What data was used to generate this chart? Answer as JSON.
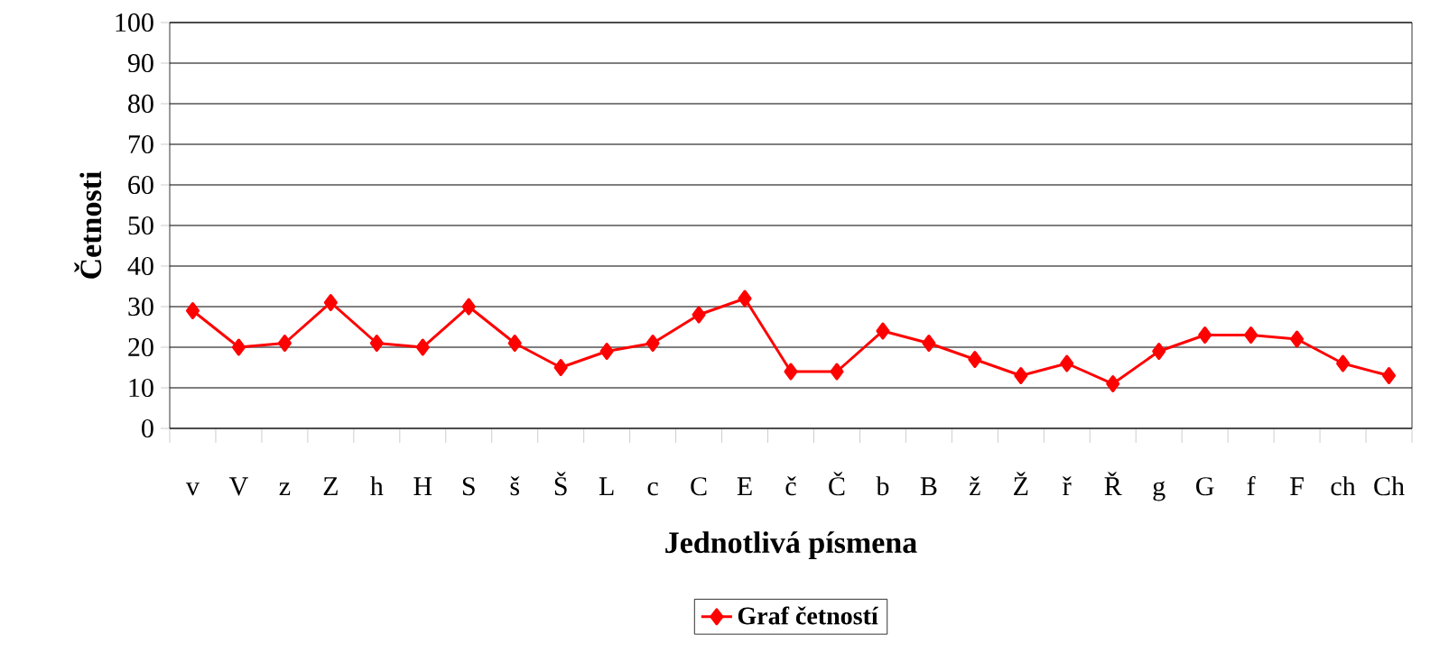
{
  "chart_data": {
    "type": "line",
    "xlabel": "Jednotlivá písmena",
    "ylabel": "Četnosti",
    "categories": [
      "v",
      "V",
      "z",
      "Z",
      "h",
      "H",
      "S",
      "š",
      "Š",
      "L",
      "c",
      "C",
      "E",
      "č",
      "Č",
      "b",
      "B",
      "ž",
      "Ž",
      "ř",
      "Ř",
      "g",
      "G",
      "f",
      "F",
      "ch",
      "Ch"
    ],
    "series": [
      {
        "name": "Graf četností",
        "color": "#ff0000",
        "values": [
          29,
          20,
          21,
          31,
          21,
          20,
          30,
          21,
          15,
          19,
          21,
          28,
          32,
          14,
          14,
          24,
          21,
          17,
          13,
          16,
          11,
          19,
          23,
          23,
          22,
          16,
          13
        ]
      }
    ],
    "ylim": [
      0,
      100
    ],
    "yticks": [
      0,
      10,
      20,
      30,
      40,
      50,
      60,
      70,
      80,
      90,
      100
    ],
    "grid": "y",
    "legend": "bottom",
    "marker": "diamond",
    "line_style": "solid"
  }
}
